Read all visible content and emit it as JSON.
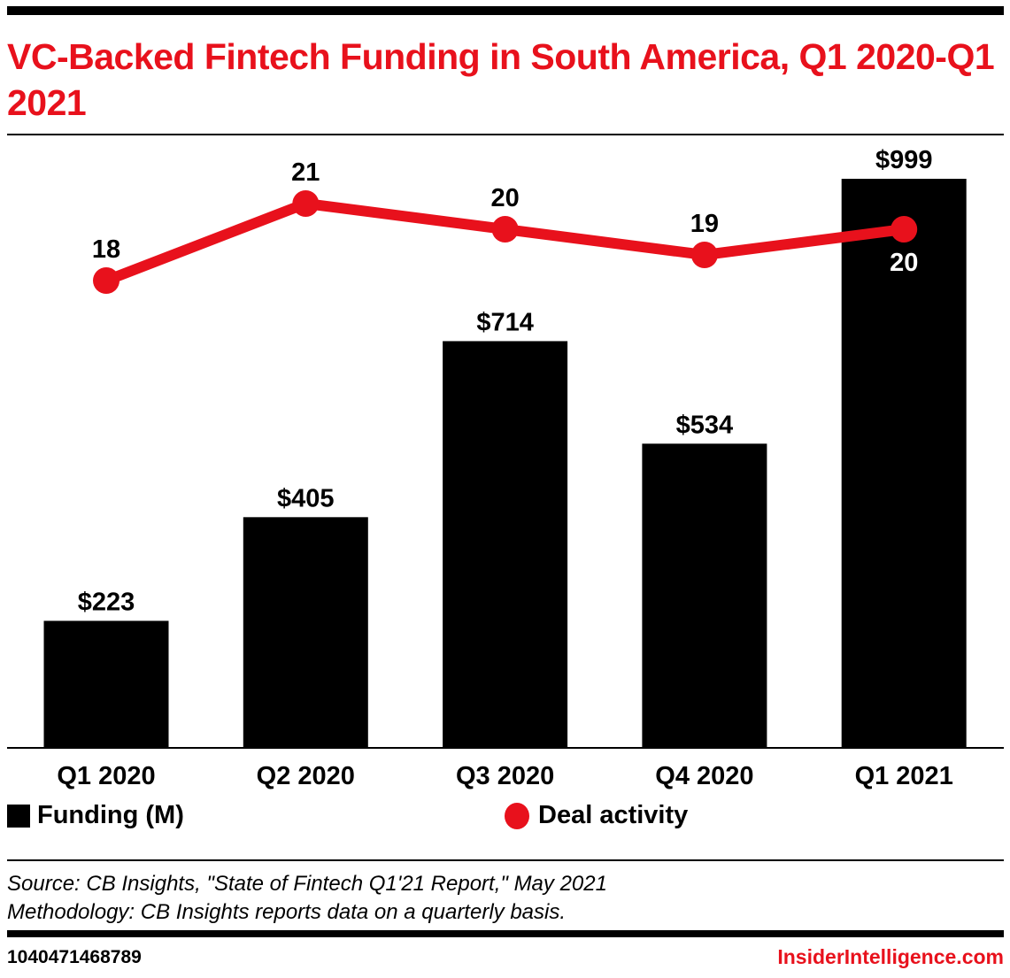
{
  "header": {
    "title": "VC-Backed Fintech Funding in South America, Q1 2020-Q1 2021"
  },
  "chart_data": {
    "type": "bar",
    "title": "VC-Backed Fintech Funding in South America, Q1 2020-Q1 2021",
    "xlabel": "",
    "ylabel": "",
    "categories": [
      "Q1 2020",
      "Q2 2020",
      "Q3 2020",
      "Q4 2020",
      "Q1 2021"
    ],
    "series": [
      {
        "name": "Funding (M)",
        "type": "bar",
        "values": [
          223,
          405,
          714,
          534,
          999
        ],
        "labels": [
          "$223",
          "$405",
          "$714",
          "$534",
          "$999"
        ],
        "color": "#000000"
      },
      {
        "name": "Deal activity",
        "type": "line",
        "values": [
          18,
          21,
          20,
          19,
          20
        ],
        "labels": [
          "18",
          "21",
          "20",
          "19",
          "20"
        ],
        "color": "#e8111c"
      }
    ],
    "ylim_bar": [
      0,
      999
    ],
    "grid": false,
    "legend": {
      "placement": "bottom",
      "entries": [
        "Funding (M)",
        "Deal activity"
      ]
    }
  },
  "legend": {
    "funding_label": "Funding (M)",
    "deals_label": "Deal activity"
  },
  "footer": {
    "source": "Source: CB Insights, \"State of Fintech Q1'21 Report,\" May 2021",
    "methodology": "Methodology: CB Insights reports data on a quarterly basis.",
    "chart_id": "1040471468789",
    "brand": "InsiderIntelligence.com"
  },
  "colors": {
    "accent": "#e8111c",
    "bar": "#000000"
  }
}
